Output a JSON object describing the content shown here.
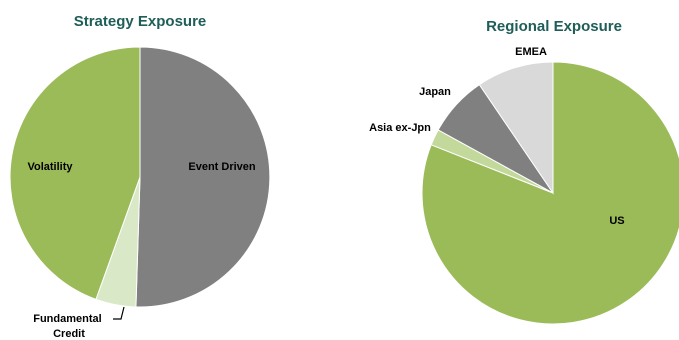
{
  "chart_data": [
    {
      "type": "pie",
      "title": "Strategy Exposure",
      "slices": [
        {
          "label": "Event Driven",
          "value": 50.5,
          "color": "#808080"
        },
        {
          "label": "Fundamental Credit",
          "value": 5.0,
          "color": "#d9e8c6"
        },
        {
          "label": "Volatility",
          "value": 44.5,
          "color": "#9bbb59"
        }
      ],
      "start_angle_deg": 0,
      "direction": "clockwise",
      "legend": "none"
    },
    {
      "type": "pie",
      "title": "Regional Exposure",
      "slices": [
        {
          "label": "US",
          "value": 81.0,
          "color": "#9bbb59"
        },
        {
          "label": "Asia ex-Jpn",
          "value": 2.0,
          "color": "#c3d99b"
        },
        {
          "label": "Japan",
          "value": 7.5,
          "color": "#808080"
        },
        {
          "label": "EMEA",
          "value": 9.5,
          "color": "#d9d9d9"
        }
      ],
      "start_angle_deg": 0,
      "direction": "clockwise",
      "legend": "none"
    }
  ]
}
